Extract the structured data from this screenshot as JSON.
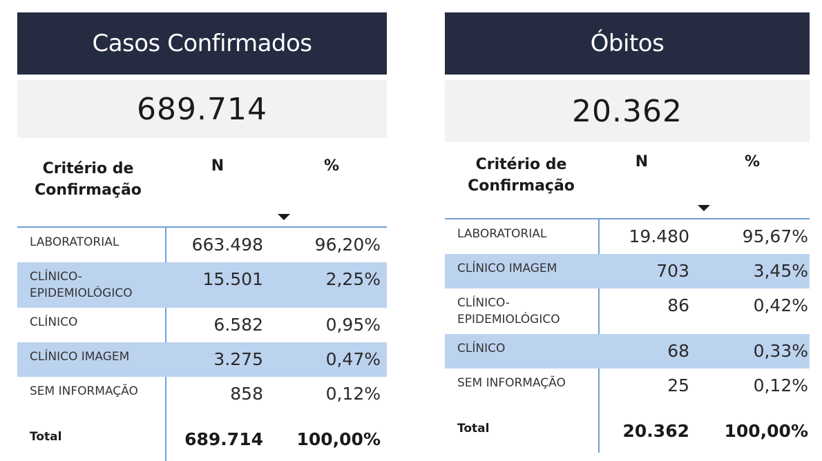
{
  "cases": {
    "title": "Casos Confirmados",
    "total": "689.714",
    "headers": {
      "criterion": "Critério de Confirmação",
      "n": "N",
      "pct": "%"
    },
    "rows": [
      {
        "criterion": "LABORATORIAL",
        "n": "663.498",
        "pct": "96,20%",
        "highlight": false
      },
      {
        "criterion": "CLÍNICO-EPIDEMIOLÓGICO",
        "n": "15.501",
        "pct": "2,25%",
        "highlight": true
      },
      {
        "criterion": "CLÍNICO",
        "n": "6.582",
        "pct": "0,95%",
        "highlight": false
      },
      {
        "criterion": "CLÍNICO IMAGEM",
        "n": "3.275",
        "pct": "0,47%",
        "highlight": true
      },
      {
        "criterion": "SEM INFORMAÇÃO",
        "n": "858",
        "pct": "0,12%",
        "highlight": false
      }
    ],
    "total_row": {
      "label": "Total",
      "n": "689.714",
      "pct": "100,00%"
    }
  },
  "deaths": {
    "title": "Óbitos",
    "total": "20.362",
    "headers": {
      "criterion": "Critério de Confirmação",
      "n": "N",
      "pct": "%"
    },
    "rows": [
      {
        "criterion": "LABORATORIAL",
        "n": "19.480",
        "pct": "95,67%",
        "highlight": false
      },
      {
        "criterion": "CLÍNICO IMAGEM",
        "n": "703",
        "pct": "3,45%",
        "highlight": true
      },
      {
        "criterion": "CLÍNICO-EPIDEMIOLÓGICO",
        "n": "86",
        "pct": "0,42%",
        "highlight": false
      },
      {
        "criterion": "CLÍNICO",
        "n": "68",
        "pct": "0,33%",
        "highlight": true
      },
      {
        "criterion": "SEM INFORMAÇÃO",
        "n": "25",
        "pct": "0,12%",
        "highlight": false
      }
    ],
    "total_row": {
      "label": "Total",
      "n": "20.362",
      "pct": "100,00%"
    }
  },
  "colors": {
    "title_bg": "#252b41",
    "kpi_bg": "#f2f2f2",
    "highlight_row": "#bcd3ef",
    "rule": "#6f9fd8"
  },
  "icons": {
    "sort": "sort-descending-icon"
  }
}
